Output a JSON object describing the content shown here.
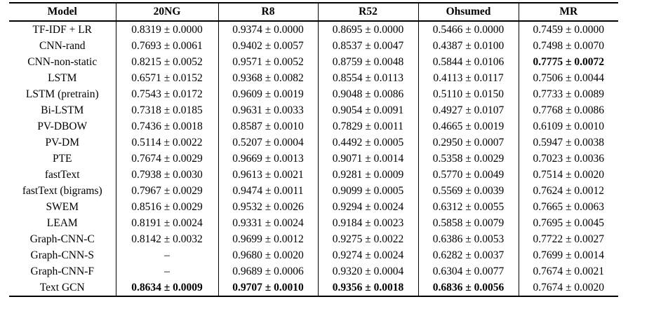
{
  "table": {
    "columns": [
      {
        "label": "Model"
      },
      {
        "label": "20NG"
      },
      {
        "label": "R8"
      },
      {
        "label": "R52"
      },
      {
        "label": "Ohsumed"
      },
      {
        "label": "MR"
      }
    ],
    "rows": [
      {
        "cells": [
          {
            "text": "TF-IDF + LR",
            "bold": false
          },
          {
            "text": "0.8319 ± 0.0000",
            "bold": false
          },
          {
            "text": "0.9374 ± 0.0000",
            "bold": false
          },
          {
            "text": "0.8695 ± 0.0000",
            "bold": false
          },
          {
            "text": "0.5466 ± 0.0000",
            "bold": false
          },
          {
            "text": "0.7459 ± 0.0000",
            "bold": false
          }
        ]
      },
      {
        "cells": [
          {
            "text": "CNN-rand",
            "bold": false
          },
          {
            "text": "0.7693 ± 0.0061",
            "bold": false
          },
          {
            "text": "0.9402 ± 0.0057",
            "bold": false
          },
          {
            "text": "0.8537 ± 0.0047",
            "bold": false
          },
          {
            "text": "0.4387 ± 0.0100",
            "bold": false
          },
          {
            "text": "0.7498 ± 0.0070",
            "bold": false
          }
        ]
      },
      {
        "cells": [
          {
            "text": "CNN-non-static",
            "bold": false
          },
          {
            "text": "0.8215 ± 0.0052",
            "bold": false
          },
          {
            "text": "0.9571 ± 0.0052",
            "bold": false
          },
          {
            "text": "0.8759 ± 0.0048",
            "bold": false
          },
          {
            "text": "0.5844 ± 0.0106",
            "bold": false
          },
          {
            "text": "0.7775 ± 0.0072",
            "bold": true
          }
        ]
      },
      {
        "cells": [
          {
            "text": "LSTM",
            "bold": false
          },
          {
            "text": "0.6571 ± 0.0152",
            "bold": false
          },
          {
            "text": "0.9368 ± 0.0082",
            "bold": false
          },
          {
            "text": "0.8554 ± 0.0113",
            "bold": false
          },
          {
            "text": "0.4113 ± 0.0117",
            "bold": false
          },
          {
            "text": "0.7506 ± 0.0044",
            "bold": false
          }
        ]
      },
      {
        "cells": [
          {
            "text": "LSTM (pretrain)",
            "bold": false
          },
          {
            "text": "0.7543 ± 0.0172",
            "bold": false
          },
          {
            "text": "0.9609 ± 0.0019",
            "bold": false
          },
          {
            "text": "0.9048 ± 0.0086",
            "bold": false
          },
          {
            "text": "0.5110 ± 0.0150",
            "bold": false
          },
          {
            "text": "0.7733 ± 0.0089",
            "bold": false
          }
        ]
      },
      {
        "cells": [
          {
            "text": "Bi-LSTM",
            "bold": false
          },
          {
            "text": "0.7318 ± 0.0185",
            "bold": false
          },
          {
            "text": "0.9631 ± 0.0033",
            "bold": false
          },
          {
            "text": "0.9054 ± 0.0091",
            "bold": false
          },
          {
            "text": "0.4927 ± 0.0107",
            "bold": false
          },
          {
            "text": "0.7768 ± 0.0086",
            "bold": false
          }
        ]
      },
      {
        "cells": [
          {
            "text": "PV-DBOW",
            "bold": false
          },
          {
            "text": "0.7436 ± 0.0018",
            "bold": false
          },
          {
            "text": "0.8587 ± 0.0010",
            "bold": false
          },
          {
            "text": "0.7829 ± 0.0011",
            "bold": false
          },
          {
            "text": "0.4665 ± 0.0019",
            "bold": false
          },
          {
            "text": "0.6109 ± 0.0010",
            "bold": false
          }
        ]
      },
      {
        "cells": [
          {
            "text": "PV-DM",
            "bold": false
          },
          {
            "text": "0.5114 ± 0.0022",
            "bold": false
          },
          {
            "text": "0.5207 ± 0.0004",
            "bold": false
          },
          {
            "text": "0.4492 ± 0.0005",
            "bold": false
          },
          {
            "text": "0.2950 ± 0.0007",
            "bold": false
          },
          {
            "text": "0.5947 ± 0.0038",
            "bold": false
          }
        ]
      },
      {
        "cells": [
          {
            "text": "PTE",
            "bold": false
          },
          {
            "text": "0.7674 ± 0.0029",
            "bold": false
          },
          {
            "text": "0.9669 ± 0.0013",
            "bold": false
          },
          {
            "text": "0.9071 ± 0.0014",
            "bold": false
          },
          {
            "text": "0.5358 ± 0.0029",
            "bold": false
          },
          {
            "text": "0.7023 ± 0.0036",
            "bold": false
          }
        ]
      },
      {
        "cells": [
          {
            "text": "fastText",
            "bold": false
          },
          {
            "text": "0.7938 ± 0.0030",
            "bold": false
          },
          {
            "text": "0.9613 ± 0.0021",
            "bold": false
          },
          {
            "text": "0.9281 ± 0.0009",
            "bold": false
          },
          {
            "text": "0.5770 ± 0.0049",
            "bold": false
          },
          {
            "text": "0.7514 ± 0.0020",
            "bold": false
          }
        ]
      },
      {
        "cells": [
          {
            "text": "fastText (bigrams)",
            "bold": false
          },
          {
            "text": "0.7967 ± 0.0029",
            "bold": false
          },
          {
            "text": "0.9474 ± 0.0011",
            "bold": false
          },
          {
            "text": "0.9099 ± 0.0005",
            "bold": false
          },
          {
            "text": "0.5569 ± 0.0039",
            "bold": false
          },
          {
            "text": "0.7624 ± 0.0012",
            "bold": false
          }
        ]
      },
      {
        "cells": [
          {
            "text": "SWEM",
            "bold": false
          },
          {
            "text": "0.8516 ± 0.0029",
            "bold": false
          },
          {
            "text": "0.9532 ± 0.0026",
            "bold": false
          },
          {
            "text": "0.9294 ± 0.0024",
            "bold": false
          },
          {
            "text": "0.6312 ± 0.0055",
            "bold": false
          },
          {
            "text": "0.7665 ± 0.0063",
            "bold": false
          }
        ]
      },
      {
        "cells": [
          {
            "text": "LEAM",
            "bold": false
          },
          {
            "text": "0.8191 ± 0.0024",
            "bold": false
          },
          {
            "text": "0.9331 ± 0.0024",
            "bold": false
          },
          {
            "text": "0.9184 ± 0.0023",
            "bold": false
          },
          {
            "text": "0.5858 ± 0.0079",
            "bold": false
          },
          {
            "text": "0.7695 ± 0.0045",
            "bold": false
          }
        ]
      },
      {
        "cells": [
          {
            "text": "Graph-CNN-C",
            "bold": false
          },
          {
            "text": "0.8142 ± 0.0032",
            "bold": false
          },
          {
            "text": "0.9699 ± 0.0012",
            "bold": false
          },
          {
            "text": "0.9275 ± 0.0022",
            "bold": false
          },
          {
            "text": "0.6386 ± 0.0053",
            "bold": false
          },
          {
            "text": "0.7722 ± 0.0027",
            "bold": false
          }
        ]
      },
      {
        "cells": [
          {
            "text": "Graph-CNN-S",
            "bold": false
          },
          {
            "text": "–",
            "bold": false
          },
          {
            "text": "0.9680 ± 0.0020",
            "bold": false
          },
          {
            "text": "0.9274 ± 0.0024",
            "bold": false
          },
          {
            "text": "0.6282 ± 0.0037",
            "bold": false
          },
          {
            "text": "0.7699 ± 0.0014",
            "bold": false
          }
        ]
      },
      {
        "cells": [
          {
            "text": "Graph-CNN-F",
            "bold": false
          },
          {
            "text": "–",
            "bold": false
          },
          {
            "text": "0.9689 ± 0.0006",
            "bold": false
          },
          {
            "text": "0.9320 ± 0.0004",
            "bold": false
          },
          {
            "text": "0.6304 ± 0.0077",
            "bold": false
          },
          {
            "text": "0.7674 ± 0.0021",
            "bold": false
          }
        ]
      },
      {
        "cells": [
          {
            "text": "Text GCN",
            "bold": false
          },
          {
            "text": "0.8634 ± 0.0009",
            "bold": true
          },
          {
            "text": "0.9707 ± 0.0010",
            "bold": true
          },
          {
            "text": "0.9356 ± 0.0018",
            "bold": true
          },
          {
            "text": "0.6836 ± 0.0056",
            "bold": true
          },
          {
            "text": "0.7674 ± 0.0020",
            "bold": false
          }
        ]
      }
    ]
  }
}
